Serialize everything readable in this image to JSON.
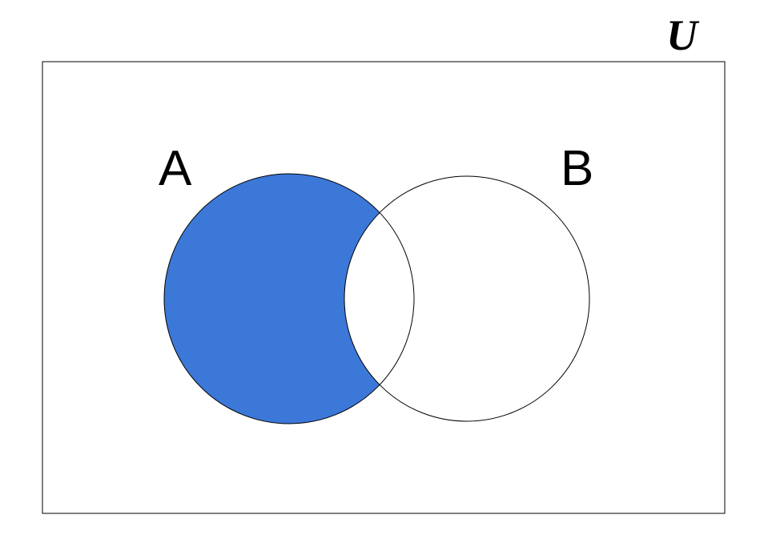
{
  "universe": {
    "label": "U"
  },
  "sets": {
    "a": {
      "label": "A"
    },
    "b": {
      "label": "B"
    }
  },
  "shaded_region": "A minus B",
  "colors": {
    "fill": "#3c78d8",
    "stroke": "#000000",
    "background": "#ffffff"
  }
}
